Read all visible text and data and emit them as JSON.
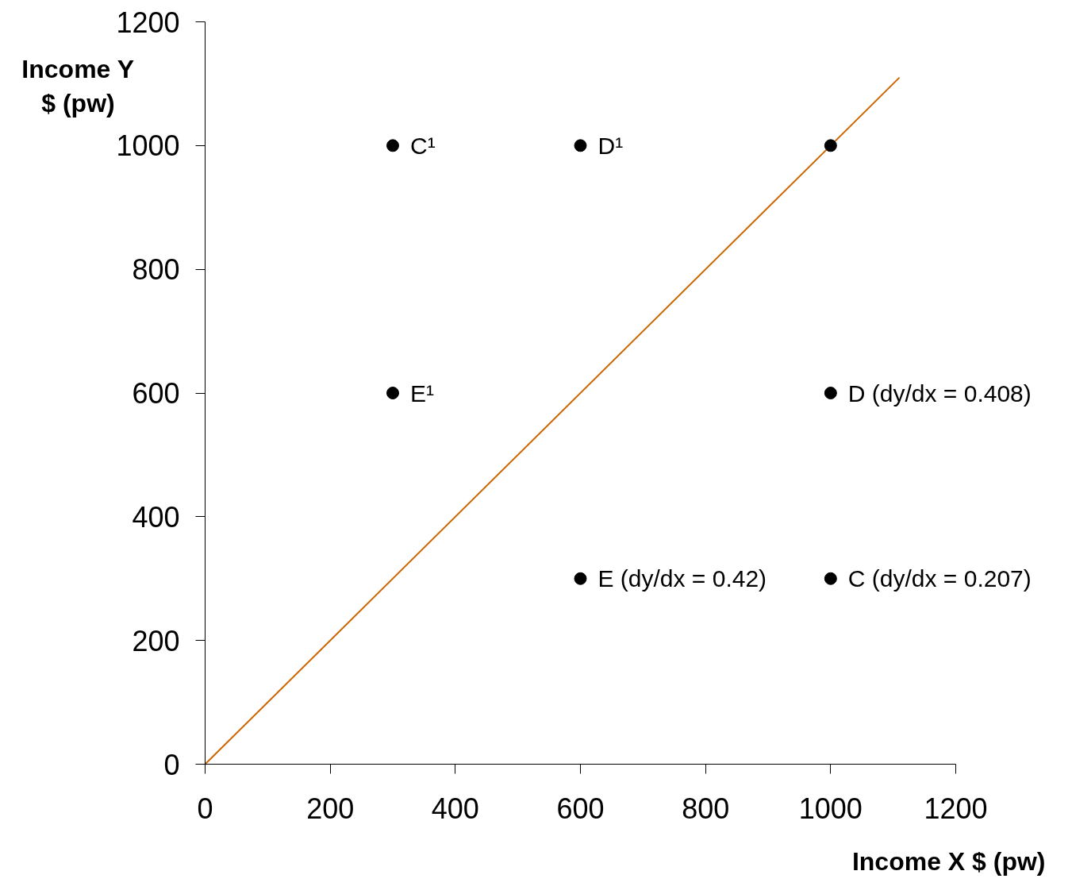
{
  "chart_data": {
    "type": "scatter",
    "xlabel": "Income X $ (pw)",
    "ylabel": "Income Y\n$ (pw)",
    "xlim": [
      0,
      1200
    ],
    "ylim": [
      0,
      1200
    ],
    "xticks": [
      0,
      200,
      400,
      600,
      800,
      1000,
      1200
    ],
    "yticks": [
      0,
      200,
      400,
      600,
      800,
      1000,
      1200
    ],
    "grid": false,
    "series": [
      {
        "type": "line",
        "color": "#cc6600",
        "marker": "none",
        "x": [
          0,
          1110
        ],
        "values": [
          0,
          1110
        ]
      },
      {
        "color": "#000000",
        "marker": "circle",
        "x": [
          300,
          600,
          1000,
          300,
          1000,
          600,
          1000
        ],
        "values": [
          1000,
          1000,
          1000,
          600,
          600,
          300,
          300
        ]
      }
    ],
    "annotations": [
      {
        "text": "C¹",
        "x": 300,
        "y": 1000
      },
      {
        "text": "D¹",
        "x": 600,
        "y": 1000
      },
      {
        "text": "E¹",
        "x": 300,
        "y": 600
      },
      {
        "text": "D (dy/dx = 0.408)",
        "x": 1000,
        "y": 600
      },
      {
        "text": "E (dy/dx = 0.42)",
        "x": 600,
        "y": 300
      },
      {
        "text": "C (dy/dx = 0.207)",
        "x": 1000,
        "y": 300
      }
    ]
  }
}
